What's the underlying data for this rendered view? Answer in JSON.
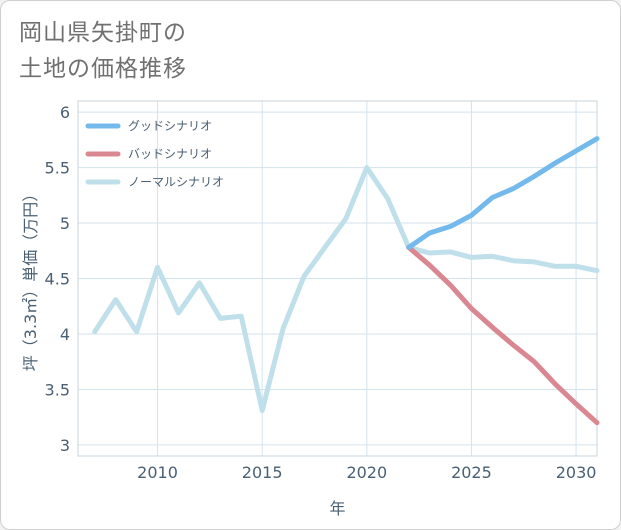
{
  "title_lines": [
    "岡山県矢掛町の",
    "土地の価格推移"
  ],
  "chart_data": {
    "type": "line",
    "xlabel": "年",
    "ylabel": "坪（3.3㎡）単価（万円）",
    "xlim": [
      2006.2,
      2031
    ],
    "ylim": [
      2.9,
      6.1
    ],
    "x_ticks": [
      2010,
      2015,
      2020,
      2025,
      2030
    ],
    "y_ticks": [
      3,
      3.5,
      4,
      4.5,
      5,
      5.5,
      6
    ],
    "x_tick_labels": [
      "2010",
      "2015",
      "2020",
      "2025",
      "2030"
    ],
    "y_tick_labels": [
      "3",
      "3.5",
      "4",
      "4.5",
      "5",
      "5.5",
      "6"
    ],
    "grid": true,
    "legend_position": "top-left",
    "series": [
      {
        "name": "グッドシナリオ",
        "color": "#74b9ec",
        "x": [
          2022,
          2023,
          2024,
          2025,
          2026,
          2027,
          2028,
          2029,
          2030,
          2031
        ],
        "values": [
          4.78,
          4.91,
          4.97,
          5.07,
          5.23,
          5.31,
          5.42,
          5.54,
          5.65,
          5.76
        ]
      },
      {
        "name": "バッドシナリオ",
        "color": "#d98891",
        "x": [
          2022,
          2023,
          2024,
          2025,
          2026,
          2027,
          2028,
          2029,
          2030,
          2031
        ],
        "values": [
          4.78,
          4.62,
          4.44,
          4.23,
          4.06,
          3.9,
          3.75,
          3.55,
          3.37,
          3.2
        ]
      },
      {
        "name": "ノーマルシナリオ",
        "color": "#bfdfea",
        "x": [
          2007,
          2008,
          2009,
          2010,
          2011,
          2012,
          2013,
          2014,
          2015,
          2016,
          2017,
          2018,
          2019,
          2020,
          2021,
          2022,
          2023,
          2024,
          2025,
          2026,
          2027,
          2028,
          2029,
          2030,
          2031
        ],
        "values": [
          4.02,
          4.31,
          4.02,
          4.6,
          4.19,
          4.46,
          4.14,
          4.16,
          3.31,
          4.05,
          4.52,
          4.78,
          5.04,
          5.5,
          5.22,
          4.78,
          4.73,
          4.74,
          4.69,
          4.7,
          4.66,
          4.65,
          4.61,
          4.61,
          4.57
        ]
      }
    ]
  }
}
